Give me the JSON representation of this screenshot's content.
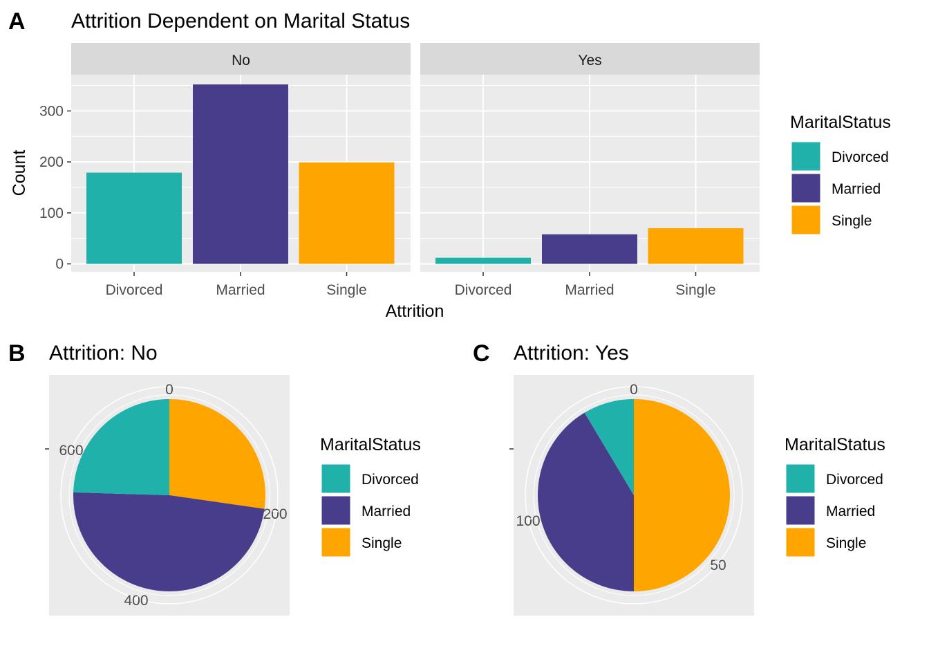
{
  "panels": {
    "A": {
      "tag": "A",
      "title": "Attrition Dependent on Marital Status",
      "xlabel": "Attrition",
      "ylabel": "Count"
    },
    "B": {
      "tag": "B",
      "title": "Attrition: No"
    },
    "C": {
      "tag": "C",
      "title": "Attrition: Yes"
    }
  },
  "legend": {
    "title": "MaritalStatus",
    "items": [
      {
        "label": "Divorced",
        "color": "#20B2AA"
      },
      {
        "label": "Married",
        "color": "#483D8B"
      },
      {
        "label": "Single",
        "color": "#FFA500"
      }
    ]
  },
  "chart_data": [
    {
      "type": "bar",
      "title": "Attrition Dependent on Marital Status",
      "xlabel": "Attrition",
      "ylabel": "Count",
      "facets": [
        "No",
        "Yes"
      ],
      "categories": [
        "Divorced",
        "Married",
        "Single"
      ],
      "series": [
        {
          "facet": "No",
          "values": [
            179,
            352,
            199
          ]
        },
        {
          "facet": "Yes",
          "values": [
            12,
            58,
            70
          ]
        }
      ],
      "yticks": [
        0,
        100,
        200,
        300
      ],
      "ylim": [
        0,
        370
      ],
      "grid": true,
      "legend_position": "right"
    },
    {
      "type": "pie",
      "title": "Attrition: No",
      "categories": [
        "Divorced",
        "Married",
        "Single"
      ],
      "values": [
        179,
        352,
        199
      ],
      "ticks": [
        0,
        200,
        400,
        600
      ],
      "legend_position": "right"
    },
    {
      "type": "pie",
      "title": "Attrition: Yes",
      "categories": [
        "Divorced",
        "Married",
        "Single"
      ],
      "values": [
        12,
        58,
        70
      ],
      "ticks": [
        0,
        50,
        100
      ],
      "legend_position": "right"
    }
  ]
}
